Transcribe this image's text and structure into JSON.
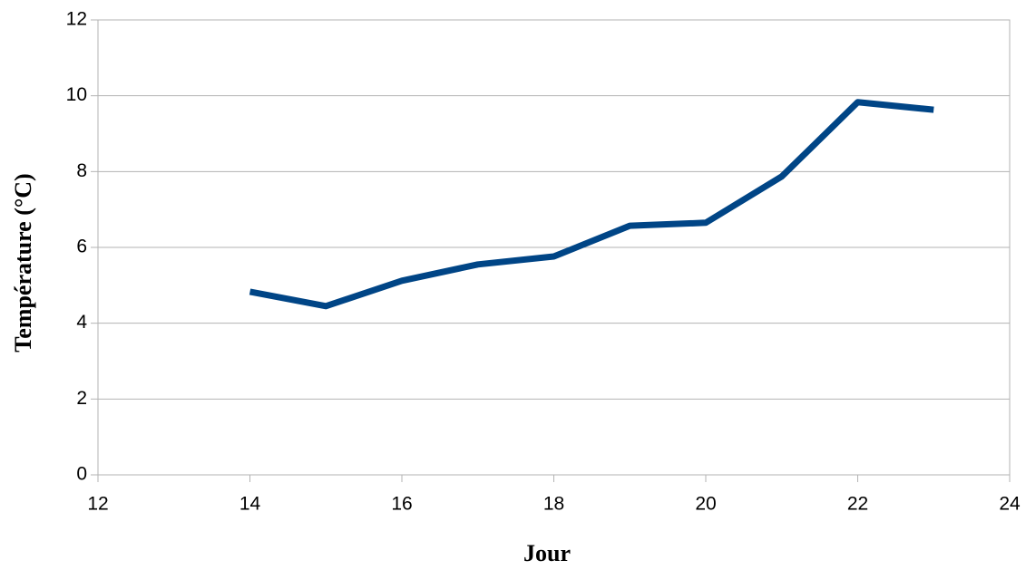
{
  "chart_data": {
    "type": "line",
    "x_label": "Jour",
    "y_label": "Température (°C)",
    "x": [
      14,
      15,
      16,
      17,
      18,
      19,
      20,
      21,
      22,
      23
    ],
    "series": [
      {
        "color": "#004586",
        "values": [
          4.83,
          4.45,
          5.12,
          5.55,
          5.76,
          6.57,
          6.65,
          7.87,
          9.83,
          9.63
        ]
      }
    ],
    "xlim": [
      12,
      24
    ],
    "xticks": [
      12,
      14,
      16,
      18,
      20,
      22,
      24
    ],
    "ylim": [
      0,
      12
    ],
    "yticks": [
      0,
      2,
      4,
      6,
      8,
      10,
      12
    ],
    "grid": true
  }
}
